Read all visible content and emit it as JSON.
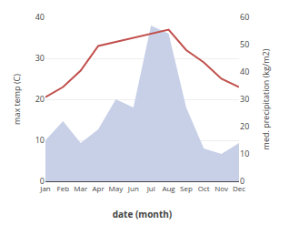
{
  "chart_data": {
    "type": "line",
    "xlabel": "date (month)",
    "ylabel": "max temp (C)",
    "y2label": "med. precipitation (kg/m2)",
    "categories": [
      "Jan",
      "Feb",
      "Mar",
      "Apr",
      "May",
      "Jun",
      "Jul",
      "Aug",
      "Sep",
      "Oct",
      "Nov",
      "Dec"
    ],
    "series": [
      {
        "type": "area",
        "axis": "y2",
        "color": "#c8d0e8",
        "values": [
          15,
          22,
          14,
          19,
          30,
          27,
          57,
          54,
          27,
          12,
          10,
          14
        ]
      },
      {
        "type": "line",
        "color": "#c0504d",
        "values": [
          20.5,
          23,
          27,
          33,
          34,
          35,
          36,
          37,
          32,
          29,
          25,
          23
        ]
      }
    ],
    "ylim": [
      0,
      40
    ],
    "yticks": [
      0,
      10,
      20,
      30,
      40
    ],
    "y2lim": [
      0,
      60
    ],
    "y2ticks": [
      0,
      10,
      20,
      30,
      40,
      50,
      60
    ],
    "grid": true
  }
}
